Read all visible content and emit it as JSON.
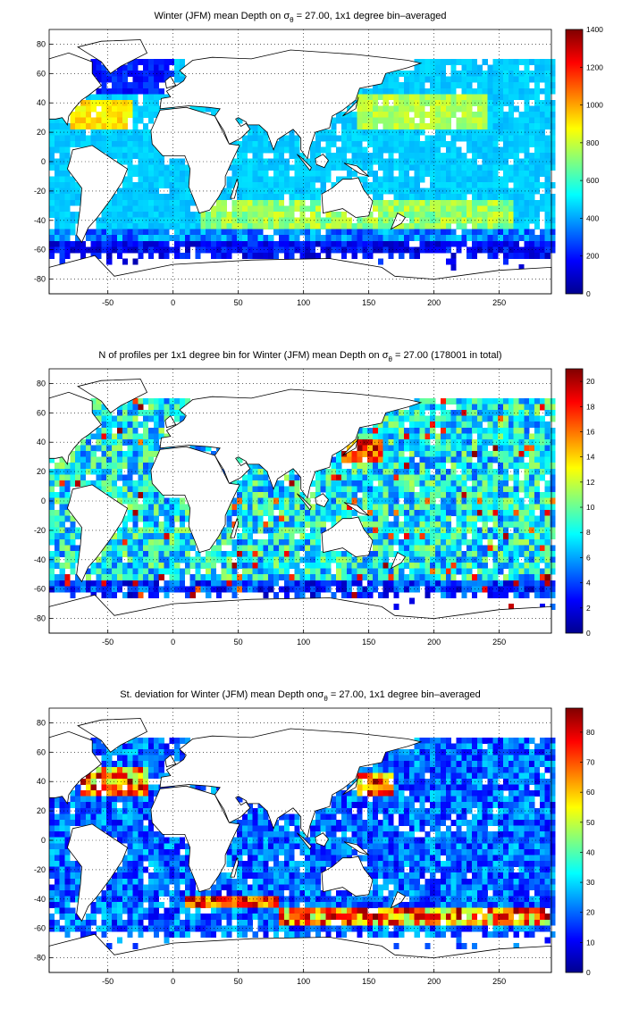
{
  "chart_data": [
    {
      "type": "heatmap",
      "title": "Winter (JFM) mean Depth on σθ = 27.00, 1x1 degree bin–averaged",
      "title_parts": {
        "before": "Winter (JFM) mean Depth on ",
        "sigma": "σ",
        "sub": "θ",
        "after": " = 27.00, 1x1 degree bin–averaged"
      },
      "xlim": [
        -95,
        290
      ],
      "ylim": [
        -90,
        90
      ],
      "xticks": [
        -50,
        0,
        50,
        100,
        150,
        200,
        250
      ],
      "yticks": [
        80,
        60,
        40,
        20,
        0,
        -20,
        -40,
        -60,
        -80
      ],
      "grid": true,
      "colormap": "jet",
      "colorbar": {
        "min": 0,
        "max": 1400,
        "ticks": [
          0,
          200,
          400,
          600,
          800,
          1000,
          1200,
          1400
        ]
      },
      "field": "mean_depth"
    },
    {
      "type": "heatmap",
      "title": "N of profiles per 1x1 degree bin for Winter (JFM) mean Depth on σθ = 27.00 (178001 in total)",
      "title_parts": {
        "before": "N of profiles per 1x1 degree bin for Winter (JFM) mean Depth on ",
        "sigma": "σ",
        "sub": "θ",
        "after": " = 27.00 (178001 in total)"
      },
      "xlim": [
        -95,
        290
      ],
      "ylim": [
        -90,
        90
      ],
      "xticks": [
        -50,
        0,
        50,
        100,
        150,
        200,
        250
      ],
      "yticks": [
        80,
        60,
        40,
        20,
        0,
        -20,
        -40,
        -60,
        -80
      ],
      "grid": true,
      "colormap": "jet",
      "colorbar": {
        "min": 0,
        "max": 21,
        "ticks": [
          0,
          2,
          4,
          6,
          8,
          10,
          12,
          14,
          16,
          18,
          20
        ]
      },
      "field": "profile_count"
    },
    {
      "type": "heatmap",
      "title": "St. deviation for Winter (JFM) mean Depth onσθ = 27.00, 1x1 degree bin–averaged",
      "title_parts": {
        "before": "St. deviation for Winter (JFM) mean Depth on",
        "sigma": "σ",
        "sub": "θ",
        "after": " = 27.00, 1x1 degree bin–averaged"
      },
      "xlim": [
        -95,
        290
      ],
      "ylim": [
        -90,
        90
      ],
      "xticks": [
        -50,
        0,
        50,
        100,
        150,
        200,
        250
      ],
      "yticks": [
        80,
        60,
        40,
        20,
        0,
        -20,
        -40,
        -60,
        -80
      ],
      "grid": true,
      "colormap": "jet",
      "colorbar": {
        "min": 0,
        "max": 88,
        "ticks": [
          0,
          10,
          20,
          30,
          40,
          50,
          60,
          70,
          80
        ]
      },
      "field": "std_depth"
    }
  ],
  "colors": {
    "land": "#ffffff",
    "coast": "#000000",
    "grid": "#000000"
  }
}
